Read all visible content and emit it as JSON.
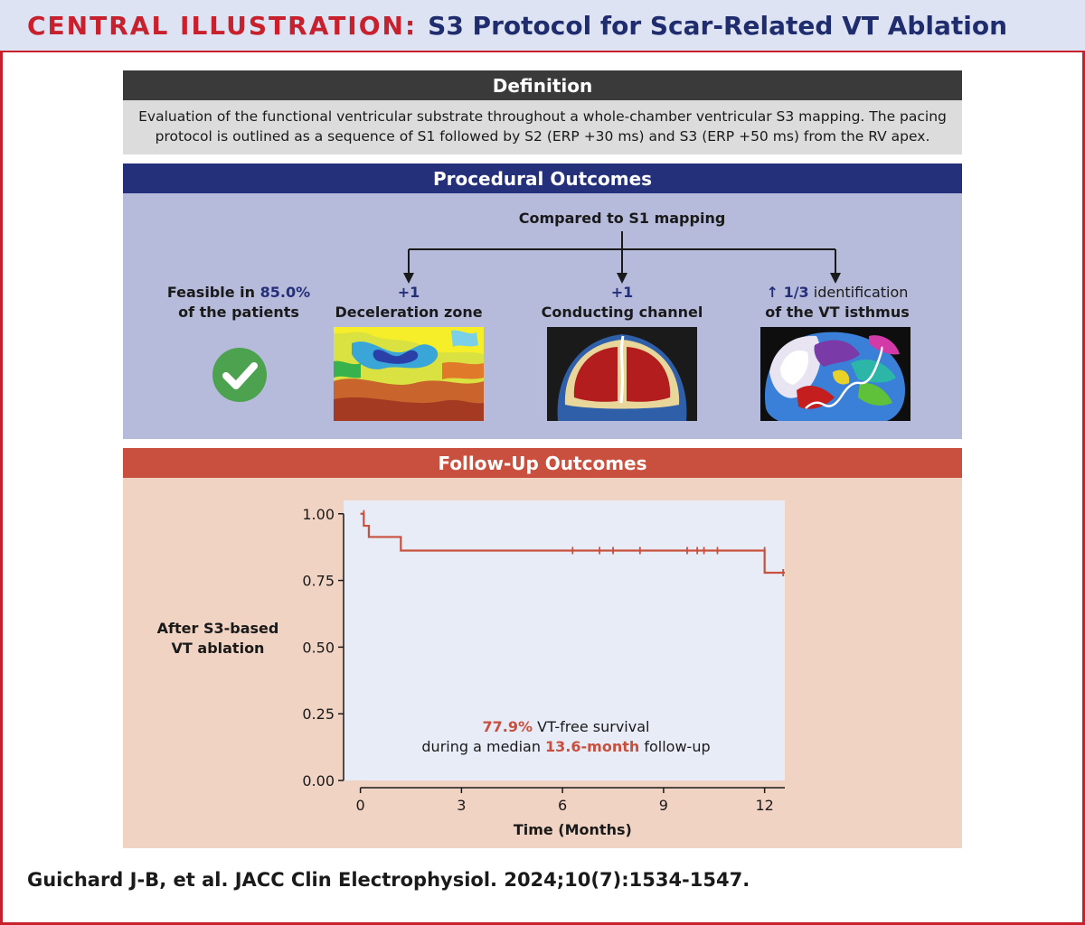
{
  "title": {
    "prefix": "CENTRAL ILLUSTRATION:",
    "main": "S3 Protocol for Scar-Related VT Ablation"
  },
  "definition": {
    "header": "Definition",
    "text_line1": "Evaluation of the functional ventricular substrate throughout a whole-chamber ventricular S3 mapping. The pacing",
    "text_line2": "protocol is outlined as a sequence of S1 followed by S2 (ERP +30 ms) and S3 (ERP +50 ms) from the RV apex."
  },
  "procedural": {
    "header": "Procedural Outcomes",
    "compared_label": "Compared to S1 mapping",
    "feasible_prefix": "Feasible in ",
    "feasible_value": "85.0%",
    "feasible_suffix": "of the patients",
    "items": [
      {
        "value": "+1",
        "label": "Deceleration zone"
      },
      {
        "value": "+1",
        "label": "Conducting channel"
      },
      {
        "value": "↑ 1/3",
        "label_inline": " identification",
        "label": "of the VT isthmus"
      }
    ],
    "icons": [
      "check-circle-icon"
    ]
  },
  "followup": {
    "header": "Follow-Up Outcomes",
    "side_label_line1": "After S3-based",
    "side_label_line2": "VT ablation",
    "annotation": {
      "value1": "77.9%",
      "text1": " VT-free survival",
      "text2_prefix": "during a median ",
      "value2": "13.6-month",
      "text2_suffix": " follow-up"
    }
  },
  "chart_data": {
    "type": "line",
    "subtype": "kaplan-meier-step",
    "xlabel": "Time (Months)",
    "ylabel": "",
    "xlim": [
      -0.5,
      12.6
    ],
    "ylim": [
      0,
      1.05
    ],
    "xticks": [
      0,
      3,
      6,
      9,
      12
    ],
    "yticks": [
      0.0,
      0.25,
      0.5,
      0.75,
      1.0
    ],
    "ytick_labels": [
      "0.00",
      "0.25",
      "0.50",
      "0.75",
      "1.00"
    ],
    "series": [
      {
        "color": "#c9503e",
        "steps": [
          [
            0,
            1.0
          ],
          [
            0.1,
            0.955
          ],
          [
            0.25,
            0.913
          ],
          [
            1.2,
            0.862
          ],
          [
            12.0,
            0.779
          ],
          [
            12.6,
            0.779
          ]
        ],
        "censored": [
          [
            0.1,
            1.0
          ],
          [
            6.3,
            0.862
          ],
          [
            7.1,
            0.862
          ],
          [
            7.5,
            0.862
          ],
          [
            8.3,
            0.862
          ],
          [
            9.7,
            0.862
          ],
          [
            10.0,
            0.862
          ],
          [
            10.2,
            0.862
          ],
          [
            10.6,
            0.862
          ],
          [
            12.0,
            0.862
          ],
          [
            12.55,
            0.779
          ]
        ]
      }
    ],
    "grid": false,
    "background": "#e8ecf6"
  },
  "citation": "Guichard J-B, et al. JACC Clin Electrophysiol. 2024;10(7):1534-1547.",
  "colors": {
    "red": "#c8202d",
    "navy": "#25307a",
    "salmon": "#c9503e",
    "check_green": "#4ca24f"
  }
}
